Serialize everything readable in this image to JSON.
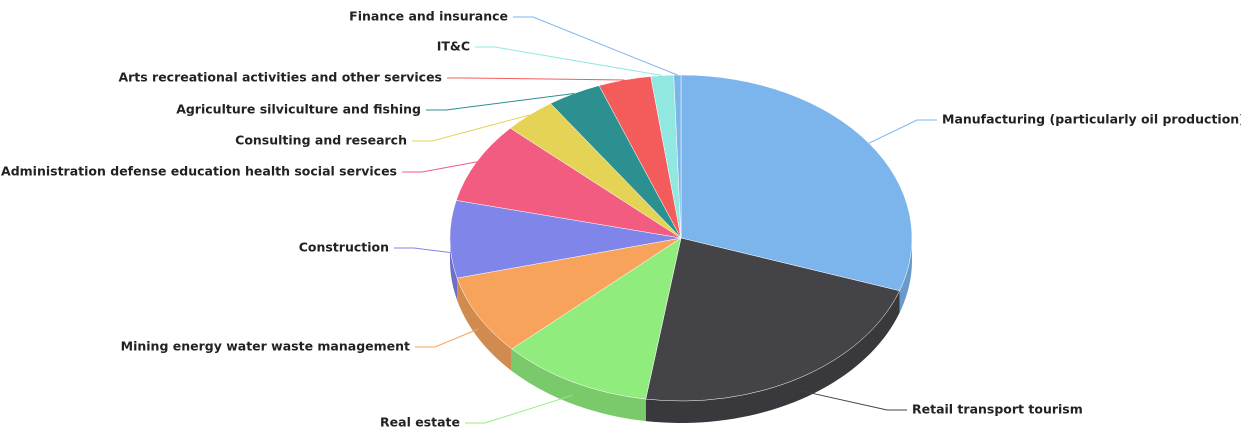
{
  "chart_data": {
    "type": "pie3d",
    "categories": [
      "Manufacturing (particularly oil production)",
      "Retail transport tourism",
      "Real estate",
      "Mining energy water waste management",
      "Construction",
      "Administration defense education health social services",
      "Consulting and research",
      "Agriculture silviculture and fishing",
      "Arts recreational activities and other services",
      "IT&C",
      "Finance and insurance"
    ],
    "values": [
      30.4,
      22.3,
      10.7,
      8,
      7.7,
      8.1,
      3.7,
      3.8,
      3.7,
      1.6,
      0.5
    ],
    "colors": [
      "#7cb5ec",
      "#434348",
      "#90ed7d",
      "#f7a35c",
      "#8085e9",
      "#f15c80",
      "#e4d354",
      "#2b908f",
      "#f45b5b",
      "#91e8e1",
      "#7cb5ec"
    ]
  }
}
